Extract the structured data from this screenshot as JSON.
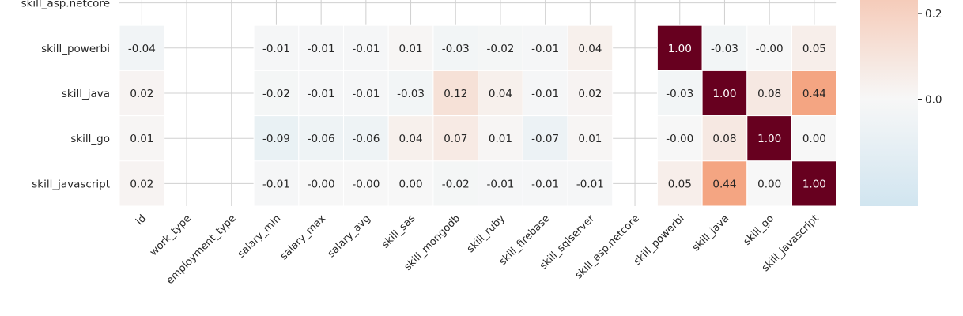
{
  "chart_data": {
    "type": "heatmap",
    "title": "",
    "x_labels": [
      "id",
      "work_type",
      "employment_type",
      "salary_min",
      "salary_max",
      "salary_avg",
      "skill_sas",
      "skill_mongodb",
      "skill_ruby",
      "skill_firebase",
      "skill_sqlserver",
      "skill_asp.netcore",
      "skill_powerbi",
      "skill_java",
      "skill_go",
      "skill_javascript"
    ],
    "y_labels": [
      "skill_asp.netcore",
      "skill_powerbi",
      "skill_java",
      "skill_go",
      "skill_javascript"
    ],
    "values": [
      [
        null,
        null,
        null,
        null,
        null,
        null,
        null,
        null,
        null,
        null,
        null,
        null,
        null,
        null,
        null,
        null
      ],
      [
        -0.04,
        null,
        null,
        -0.01,
        -0.01,
        -0.01,
        0.01,
        -0.03,
        -0.02,
        -0.01,
        0.04,
        null,
        1.0,
        -0.03,
        -0.0,
        0.05
      ],
      [
        0.02,
        null,
        null,
        -0.02,
        -0.01,
        -0.01,
        -0.03,
        0.12,
        0.04,
        -0.01,
        0.02,
        null,
        -0.03,
        1.0,
        0.08,
        0.44
      ],
      [
        0.01,
        null,
        null,
        -0.09,
        -0.06,
        -0.06,
        0.04,
        0.07,
        0.01,
        -0.07,
        0.01,
        null,
        -0.0,
        0.08,
        1.0,
        0.0
      ],
      [
        0.02,
        null,
        null,
        -0.01,
        -0.0,
        -0.0,
        0.0,
        -0.02,
        -0.01,
        -0.01,
        -0.01,
        null,
        0.05,
        0.44,
        0.0,
        1.0
      ]
    ],
    "labels": [
      [
        null,
        null,
        null,
        null,
        null,
        null,
        null,
        null,
        null,
        null,
        null,
        null,
        null,
        null,
        null,
        null
      ],
      [
        "-0.04",
        null,
        null,
        "-0.01",
        "-0.01",
        "-0.01",
        "0.01",
        "-0.03",
        "-0.02",
        "-0.01",
        "0.04",
        null,
        "1.00",
        "-0.03",
        "-0.00",
        "0.05"
      ],
      [
        "0.02",
        null,
        null,
        "-0.02",
        "-0.01",
        "-0.01",
        "-0.03",
        "0.12",
        "0.04",
        "-0.01",
        "0.02",
        null,
        "-0.03",
        "1.00",
        "0.08",
        "0.44"
      ],
      [
        "0.01",
        null,
        null,
        "-0.09",
        "-0.06",
        "-0.06",
        "0.04",
        "0.07",
        "0.01",
        "-0.07",
        "0.01",
        null,
        "-0.00",
        "0.08",
        "1.00",
        "0.00"
      ],
      [
        "0.02",
        null,
        null,
        "-0.01",
        "-0.00",
        "-0.00",
        "0.00",
        "-0.02",
        "-0.01",
        "-0.01",
        "-0.01",
        null,
        "0.05",
        "0.44",
        "0.00",
        "1.00"
      ]
    ],
    "colormap": "RdBu_r",
    "center": 0,
    "color_range": [
      -0.25,
      0.25
    ],
    "colorbar_ticks": [
      0.2,
      0.0
    ],
    "colorbar_tick_labels": [
      "0.2",
      "0.0"
    ],
    "grid": true,
    "colors": {
      "max": "#67001f",
      "high": "#f4a582",
      "center": "#f7f7f7",
      "low": "#d1e5f0",
      "background": "#ffffff",
      "gridline": "#d0d0d0"
    }
  }
}
